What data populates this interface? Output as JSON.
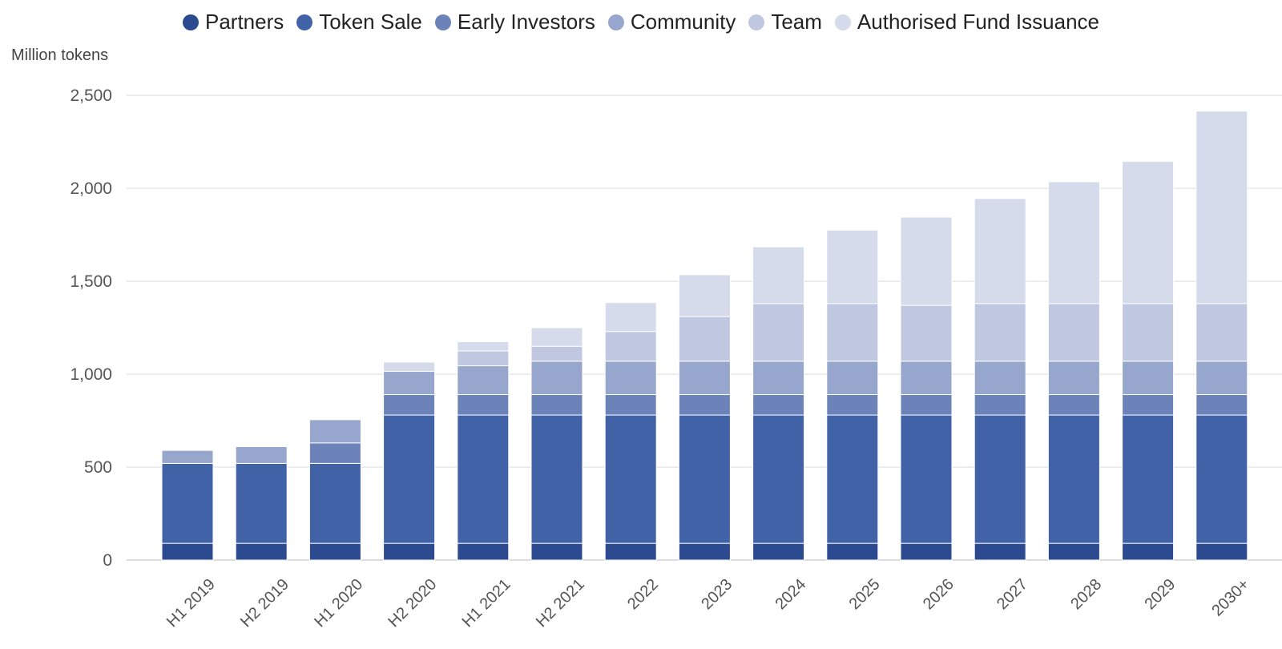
{
  "chart_data": {
    "type": "bar",
    "stacked": true,
    "ylabel": "Million tokens",
    "ylim": [
      0,
      2500
    ],
    "yticks": [
      "0",
      "500",
      "1,000",
      "1,500",
      "2,000",
      "2,500"
    ],
    "ytick_values": [
      0,
      500,
      1000,
      1500,
      2000,
      2500
    ],
    "grid": "horizontal",
    "legend_position": "top",
    "categories": [
      "H1 2019",
      "H2 2019",
      "H1 2020",
      "H2 2020",
      "H1 2021",
      "H2 2021",
      "2022",
      "2023",
      "2024",
      "2025",
      "2026",
      "2027",
      "2028",
      "2029",
      "2030+"
    ],
    "series": [
      {
        "name": "Partners",
        "color": "#2b4a8f",
        "values": [
          90,
          90,
          90,
          90,
          90,
          90,
          90,
          90,
          90,
          90,
          90,
          90,
          90,
          90,
          90
        ]
      },
      {
        "name": "Token Sale",
        "color": "#4262a8",
        "values": [
          430,
          430,
          430,
          690,
          690,
          690,
          690,
          690,
          690,
          690,
          690,
          690,
          690,
          690,
          690
        ]
      },
      {
        "name": "Early Investors",
        "color": "#6b83b8",
        "values": [
          0,
          0,
          110,
          110,
          110,
          110,
          110,
          110,
          110,
          110,
          110,
          110,
          110,
          110,
          110
        ]
      },
      {
        "name": "Community",
        "color": "#97a6cd",
        "values": [
          70,
          90,
          125,
          125,
          155,
          180,
          180,
          180,
          180,
          180,
          180,
          180,
          180,
          180,
          180
        ]
      },
      {
        "name": "Team",
        "color": "#c0c8e1",
        "values": [
          0,
          0,
          0,
          0,
          80,
          80,
          160,
          240,
          310,
          310,
          300,
          310,
          310,
          310,
          310
        ]
      },
      {
        "name": "Authorised Fund Issuance",
        "color": "#d5dbeb",
        "values": [
          0,
          0,
          0,
          50,
          50,
          100,
          155,
          225,
          305,
          395,
          475,
          565,
          655,
          765,
          1035
        ]
      }
    ]
  }
}
